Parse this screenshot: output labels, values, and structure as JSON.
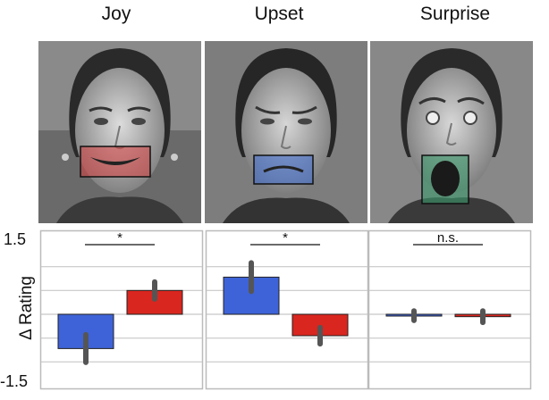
{
  "chart_data": {
    "type": "bar",
    "ylabel": "Δ Rating",
    "ylim": [
      -1.5,
      1.5
    ],
    "ytick_labels": [
      "1.5",
      "-1.5"
    ],
    "grid": true,
    "colors": {
      "blue": "#3e63d8",
      "red": "#d9261f",
      "error_bar": "#555555"
    },
    "panels": [
      {
        "title": "Joy",
        "significance": "*",
        "mouth_overlay": "#d94040",
        "bars": [
          {
            "value": -0.72,
            "error": 0.29,
            "color": "#3e63d8"
          },
          {
            "value": 0.5,
            "error": 0.18,
            "color": "#d9261f"
          }
        ]
      },
      {
        "title": "Upset",
        "significance": "*",
        "mouth_overlay": "#3f6fd8",
        "bars": [
          {
            "value": 0.78,
            "error": 0.3,
            "color": "#3e63d8"
          },
          {
            "value": -0.45,
            "error": 0.17,
            "color": "#d9261f"
          }
        ]
      },
      {
        "title": "Surprise",
        "significance": "n.s.",
        "mouth_overlay": "#3a9a6a",
        "bars": [
          {
            "value": -0.03,
            "error": 0.1,
            "color": "#3e63d8"
          },
          {
            "value": -0.05,
            "error": 0.12,
            "color": "#d9261f"
          }
        ]
      }
    ]
  }
}
